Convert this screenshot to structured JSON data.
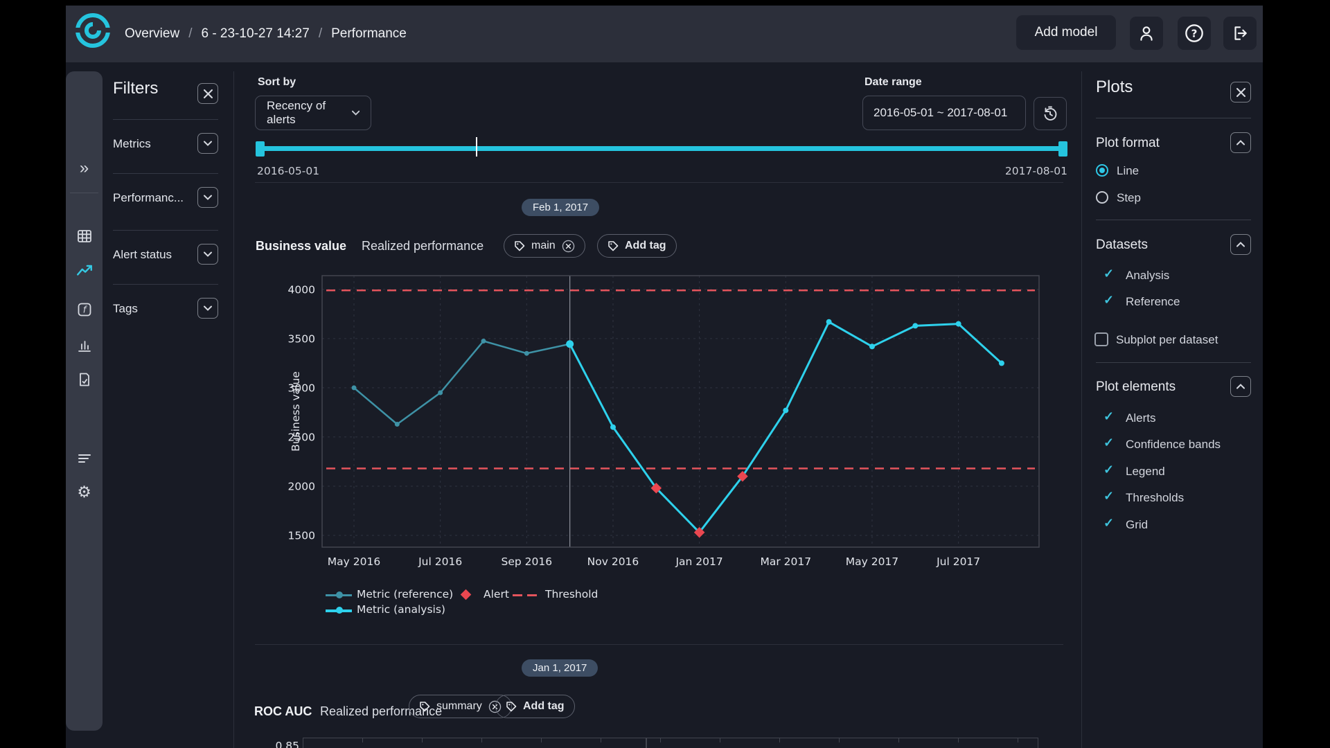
{
  "topbar": {
    "breadcrumb": [
      "Overview",
      "6 - 23-10-27 14:27",
      "Performance"
    ],
    "separator": "/",
    "add_model": "Add model"
  },
  "filters": {
    "title": "Filters",
    "sections": [
      "Metrics",
      "Performanc...",
      "Alert status",
      "Tags"
    ]
  },
  "toolbar": {
    "sort_label": "Sort by",
    "sort_value": "Recency of alerts",
    "date_label": "Date range",
    "date_value": "2016-05-01 ~ 2017-08-01",
    "range_start": "2016-05-01",
    "range_end": "2017-08-01"
  },
  "section1": {
    "date_badge": "Feb 1, 2017",
    "title": "Business value",
    "subtitle": "Realized performance",
    "tag": "main",
    "add_tag": "Add tag"
  },
  "section2": {
    "date_badge": "Jan 1, 2017",
    "title": "ROC AUC",
    "subtitle": "Realized performance",
    "tag": "summary",
    "add_tag": "Add tag",
    "first_ytick": "0.85"
  },
  "legend": {
    "reference": "Metric (reference)",
    "analysis": "Metric (analysis)",
    "alert": "Alert",
    "threshold": "Threshold"
  },
  "plots_panel": {
    "title": "Plots",
    "plot_format": {
      "label": "Plot format",
      "options": [
        "Line",
        "Step"
      ],
      "selected": "Line"
    },
    "datasets": {
      "label": "Datasets",
      "checked": [
        "Analysis",
        "Reference"
      ],
      "subplot_label": "Subplot per dataset",
      "subplot_checked": false
    },
    "plot_elements": {
      "label": "Plot elements",
      "checked": [
        "Alerts",
        "Confidence bands",
        "Legend",
        "Thresholds",
        "Grid"
      ]
    }
  },
  "colors": {
    "accent_cyan": "#25c4de",
    "reference_line": "#3e92a6",
    "analysis_line": "#2ed1ec",
    "alert_red": "#ea4750",
    "threshold_red": "#e4545c",
    "grid": "#2f3340",
    "plot_border": "#42454f",
    "plot_bg": "#191c26",
    "badge_bg": "#3d4d63"
  },
  "chart_data": {
    "type": "line",
    "title": "Business value — Realized performance",
    "ylabel": "Business value",
    "x": [
      "2016-05",
      "2016-06",
      "2016-07",
      "2016-08",
      "2016-09",
      "2016-10",
      "2016-11",
      "2016-12",
      "2017-01",
      "2017-02",
      "2017-03",
      "2017-04",
      "2017-05",
      "2017-06",
      "2017-07",
      "2017-08"
    ],
    "xtick_labels": [
      "May 2016",
      "Jul 2016",
      "Sep 2016",
      "Nov 2016",
      "Jan 2017",
      "Mar 2017",
      "May 2017",
      "Jul 2017"
    ],
    "xtick_indices": [
      0,
      2,
      4,
      6,
      8,
      10,
      12,
      14
    ],
    "yticks": [
      1500,
      2000,
      2500,
      3000,
      3500,
      4000
    ],
    "ylim": [
      1380,
      4140
    ],
    "series": [
      {
        "name": "Metric (reference)",
        "values": [
          3000,
          2630,
          2950,
          3475,
          3350,
          3445,
          null,
          null,
          null,
          null,
          null,
          null,
          null,
          null,
          null,
          null
        ]
      },
      {
        "name": "Metric (analysis)",
        "values": [
          null,
          null,
          null,
          null,
          null,
          3445,
          2600,
          1980,
          1530,
          2100,
          2770,
          3670,
          3420,
          3630,
          3650,
          3250
        ]
      }
    ],
    "thresholds": [
      3990,
      2180
    ],
    "alerts": [
      {
        "x": "2016-12",
        "value": 1980
      },
      {
        "x": "2017-01",
        "value": 1530
      },
      {
        "x": "2017-02",
        "value": 2100
      }
    ],
    "split_x": "2016-10",
    "grid": true,
    "legend_position": "bottom"
  }
}
